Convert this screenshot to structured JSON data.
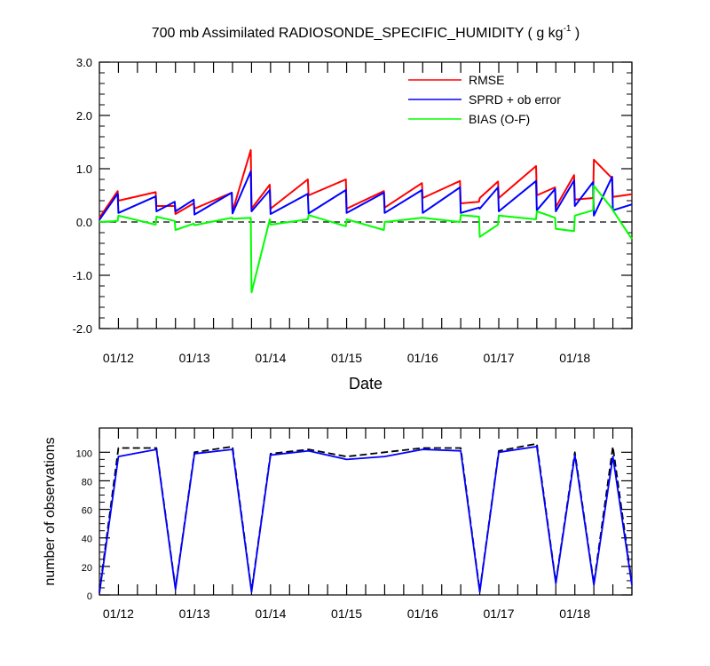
{
  "chart_data": [
    {
      "type": "line",
      "title": "700 mb Assimilated RADIOSONDE_SPECIFIC_HUMIDITY ( g kg",
      "title_exponent": "-1",
      "title_close": " )",
      "xlabel": "Date",
      "ylabel": "",
      "ylim": [
        -2.0,
        3.0
      ],
      "yticks": [
        "-2.0",
        "-1.0",
        "0.0",
        "1.0",
        "2.0",
        "3.0"
      ],
      "ytick_values": [
        -2,
        -1,
        0,
        1,
        2,
        3
      ],
      "xlim": [
        11.75,
        18.75
      ],
      "xtick_values": [
        12,
        13,
        14,
        15,
        16,
        17,
        18
      ],
      "xtick_labels": [
        "01/12",
        "01/13",
        "01/14",
        "01/15",
        "01/16",
        "01/17",
        "01/18"
      ],
      "grid": false,
      "legend_position": "top-right",
      "reference_line": {
        "y": 0,
        "style": "dashed"
      },
      "series": [
        {
          "name": "RMSE",
          "color": "#ff0000",
          "x": [
            11.75,
            11.99,
            12.0,
            12.49,
            12.5,
            12.74,
            12.75,
            12.99,
            13.0,
            13.49,
            13.5,
            13.74,
            13.75,
            13.99,
            14.0,
            14.49,
            14.5,
            14.99,
            15.0,
            15.49,
            15.5,
            15.99,
            16.0,
            16.49,
            16.5,
            16.74,
            16.75,
            16.99,
            17.0,
            17.49,
            17.5,
            17.74,
            17.75,
            17.99,
            18.0,
            18.24,
            18.25,
            18.49,
            18.5,
            18.75
          ],
          "y": [
            0.08,
            0.58,
            0.4,
            0.56,
            0.3,
            0.3,
            0.15,
            0.35,
            0.25,
            0.55,
            0.2,
            1.35,
            0.25,
            0.7,
            0.25,
            0.8,
            0.5,
            0.8,
            0.25,
            0.58,
            0.27,
            0.73,
            0.45,
            0.77,
            0.35,
            0.38,
            0.45,
            0.76,
            0.45,
            1.05,
            0.5,
            0.65,
            0.28,
            0.88,
            0.42,
            0.45,
            1.17,
            0.82,
            0.47,
            0.52
          ]
        },
        {
          "name": "SPRD + ob error",
          "color": "#0000ff",
          "x": [
            11.75,
            11.99,
            12.0,
            12.49,
            12.5,
            12.74,
            12.75,
            12.99,
            13.0,
            13.49,
            13.5,
            13.74,
            13.75,
            13.99,
            14.0,
            14.49,
            14.5,
            14.99,
            15.0,
            15.49,
            15.5,
            15.99,
            16.0,
            16.49,
            16.5,
            16.74,
            16.75,
            16.99,
            17.0,
            17.49,
            17.5,
            17.74,
            17.75,
            17.99,
            18.0,
            18.24,
            18.25,
            18.49,
            18.5,
            18.75
          ],
          "y": [
            0.04,
            0.53,
            0.17,
            0.48,
            0.2,
            0.38,
            0.2,
            0.42,
            0.14,
            0.55,
            0.16,
            0.95,
            0.2,
            0.6,
            0.15,
            0.53,
            0.16,
            0.6,
            0.17,
            0.55,
            0.17,
            0.6,
            0.17,
            0.65,
            0.17,
            0.27,
            0.25,
            0.65,
            0.2,
            0.77,
            0.22,
            0.62,
            0.2,
            0.78,
            0.3,
            0.75,
            0.12,
            0.85,
            0.22,
            0.33
          ]
        },
        {
          "name": "BIAS (O-F)",
          "color": "#00ff00",
          "x": [
            11.75,
            11.99,
            12.0,
            12.49,
            12.5,
            12.74,
            12.75,
            12.99,
            13.0,
            13.49,
            13.5,
            13.74,
            13.75,
            13.99,
            14.0,
            14.49,
            14.5,
            14.99,
            15.0,
            15.49,
            15.5,
            15.99,
            16.0,
            16.49,
            16.5,
            16.74,
            16.75,
            16.99,
            17.0,
            17.49,
            17.5,
            17.74,
            17.75,
            17.99,
            18.0,
            18.24,
            18.25,
            18.49,
            18.5,
            18.75
          ],
          "y": [
            0.0,
            0.02,
            0.12,
            -0.05,
            0.1,
            0.02,
            -0.15,
            -0.03,
            -0.06,
            0.08,
            0.06,
            0.08,
            -1.32,
            0.05,
            -0.05,
            0.05,
            0.13,
            -0.08,
            0.05,
            -0.15,
            0.0,
            0.08,
            0.08,
            0.0,
            0.13,
            0.1,
            -0.28,
            -0.05,
            0.12,
            0.05,
            0.2,
            0.08,
            -0.13,
            -0.17,
            0.12,
            0.22,
            0.68,
            0.25,
            0.22,
            -0.32
          ]
        }
      ]
    },
    {
      "type": "line",
      "title": "",
      "xlabel": "",
      "ylabel": "number of observations",
      "ylim": [
        0,
        117
      ],
      "yticks": [
        "0",
        "20",
        "40",
        "60",
        "80",
        "100"
      ],
      "ytick_values": [
        0,
        20,
        40,
        60,
        80,
        100
      ],
      "xlim": [
        11.75,
        18.75
      ],
      "xtick_values": [
        12,
        13,
        14,
        15,
        16,
        17,
        18
      ],
      "xtick_labels": [
        "01/12",
        "01/13",
        "01/14",
        "01/15",
        "01/16",
        "01/17",
        "01/18"
      ],
      "grid": false,
      "series": [
        {
          "name": "",
          "color": "#000000",
          "style": "dashed",
          "x": [
            11.75,
            12.0,
            12.5,
            12.75,
            13.0,
            13.5,
            13.75,
            14.0,
            14.5,
            15.0,
            15.5,
            16.0,
            16.5,
            16.75,
            17.0,
            17.5,
            17.75,
            18.0,
            18.25,
            18.5,
            18.75
          ],
          "y": [
            2,
            103,
            103,
            5,
            100,
            104,
            3,
            99,
            102,
            97,
            100,
            103,
            103,
            3,
            101,
            106,
            9,
            100,
            8,
            104,
            8
          ]
        },
        {
          "name": "",
          "color": "#0000ff",
          "style": "solid",
          "x": [
            11.75,
            12.0,
            12.5,
            12.75,
            13.0,
            13.5,
            13.75,
            14.0,
            14.5,
            15.0,
            15.5,
            16.0,
            16.5,
            16.75,
            17.0,
            17.5,
            17.75,
            18.0,
            18.25,
            18.5,
            18.75
          ],
          "y": [
            1,
            97,
            102,
            4,
            99,
            102,
            2,
            98,
            101,
            95,
            97,
            102,
            101,
            2,
            100,
            104,
            8,
            98,
            7,
            97,
            7
          ]
        }
      ]
    }
  ]
}
